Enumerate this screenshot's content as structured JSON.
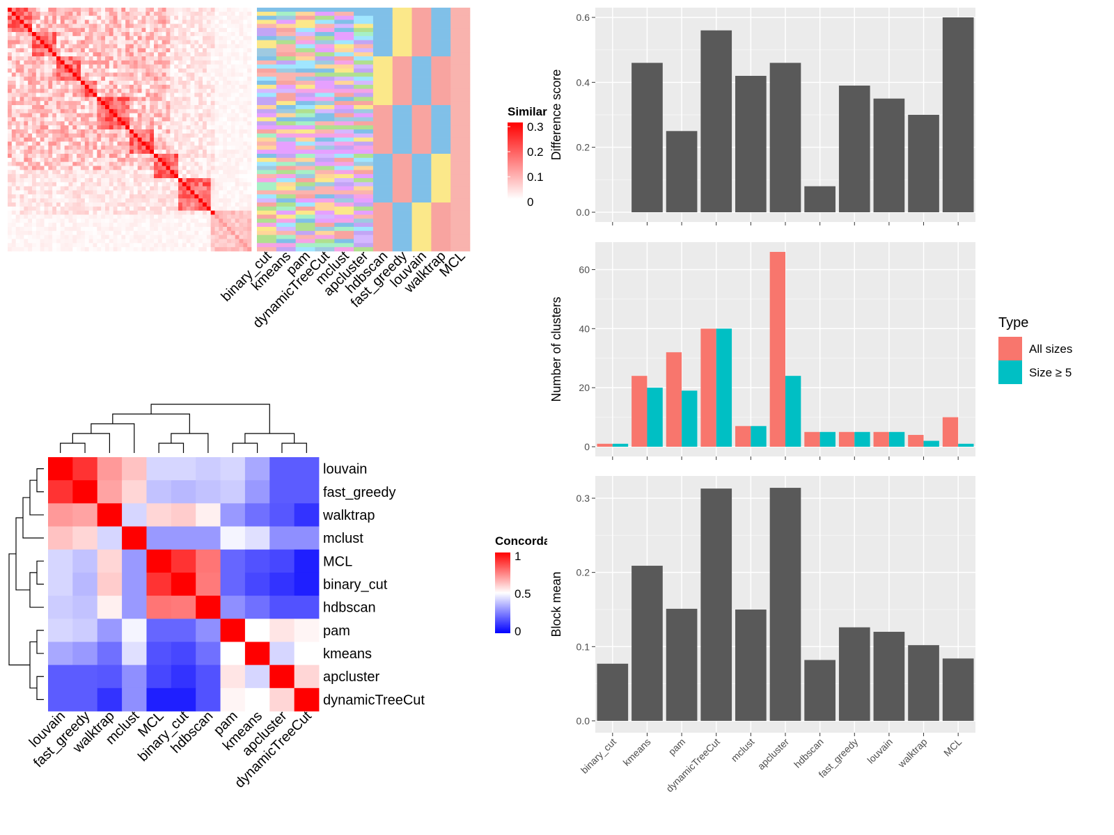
{
  "similarity_panel": {
    "legend_title": "Similarity",
    "legend_ticks": [
      "0.3",
      "0.2",
      "0.1",
      "0"
    ],
    "method_labels": [
      "binary_cut",
      "kmeans",
      "pam",
      "dynamicTreeCut",
      "mclust",
      "apcluster",
      "hdbscan",
      "fast_greedy",
      "louvain",
      "walktrap",
      "MCL"
    ],
    "colors": {
      "high": "#ff0000",
      "low": "#ffffff"
    }
  },
  "concordance_panel": {
    "legend_title": "Concordance",
    "legend_ticks": [
      "1",
      "0.5",
      "0"
    ],
    "colors": {
      "high": "#ff0000",
      "mid": "#ffffff",
      "low": "#0000ff"
    }
  },
  "chart_data": [
    {
      "type": "heatmap",
      "title": "",
      "legend_title": "Concordance",
      "rows": [
        "louvain",
        "fast_greedy",
        "walktrap",
        "mclust",
        "MCL",
        "binary_cut",
        "hdbscan",
        "pam",
        "kmeans",
        "apcluster",
        "dynamicTreeCut"
      ],
      "columns": [
        "louvain",
        "fast_greedy",
        "walktrap",
        "mclust",
        "MCL",
        "binary_cut",
        "hdbscan",
        "pam",
        "kmeans",
        "apcluster",
        "dynamicTreeCut"
      ],
      "values": [
        [
          1.0,
          0.9,
          0.7,
          0.62,
          0.42,
          0.42,
          0.4,
          0.42,
          0.33,
          0.18,
          0.18
        ],
        [
          0.9,
          1.0,
          0.68,
          0.58,
          0.38,
          0.36,
          0.38,
          0.4,
          0.3,
          0.18,
          0.18
        ],
        [
          0.7,
          0.68,
          1.0,
          0.42,
          0.58,
          0.6,
          0.53,
          0.3,
          0.22,
          0.17,
          0.1
        ],
        [
          0.62,
          0.58,
          0.42,
          1.0,
          0.3,
          0.3,
          0.3,
          0.48,
          0.44,
          0.28,
          0.28
        ],
        [
          0.42,
          0.38,
          0.58,
          0.3,
          1.0,
          0.9,
          0.77,
          0.2,
          0.16,
          0.14,
          0.06
        ],
        [
          0.42,
          0.36,
          0.6,
          0.3,
          0.9,
          1.0,
          0.76,
          0.2,
          0.14,
          0.1,
          0.06
        ],
        [
          0.4,
          0.38,
          0.53,
          0.3,
          0.77,
          0.76,
          1.0,
          0.28,
          0.22,
          0.16,
          0.16
        ],
        [
          0.42,
          0.4,
          0.3,
          0.48,
          0.2,
          0.2,
          0.28,
          1.0,
          0.5,
          0.55,
          0.52
        ],
        [
          0.33,
          0.3,
          0.22,
          0.44,
          0.16,
          0.14,
          0.22,
          0.5,
          1.0,
          0.42,
          0.5
        ],
        [
          0.18,
          0.18,
          0.17,
          0.28,
          0.14,
          0.1,
          0.16,
          0.55,
          0.42,
          1.0,
          0.58
        ],
        [
          0.18,
          0.18,
          0.1,
          0.28,
          0.06,
          0.06,
          0.16,
          0.52,
          0.5,
          0.58,
          1.0
        ]
      ],
      "scale": [
        0,
        1
      ]
    },
    {
      "type": "bar",
      "categories": [
        "binary_cut",
        "kmeans",
        "pam",
        "dynamicTreeCut",
        "mclust",
        "apcluster",
        "hdbscan",
        "fast_greedy",
        "louvain",
        "walktrap",
        "MCL"
      ],
      "values": [
        0.0,
        0.46,
        0.25,
        0.56,
        0.42,
        0.46,
        0.08,
        0.39,
        0.35,
        0.3,
        0.6
      ],
      "xlabel": "",
      "ylabel": "Difference score",
      "ylim": [
        -0.03,
        0.63
      ],
      "yticks": [
        0.0,
        0.2,
        0.4,
        0.6
      ],
      "ytick_labels": [
        "0.0",
        "0.2",
        "0.4",
        "0.6"
      ],
      "grid": true
    },
    {
      "type": "bar",
      "categories": [
        "binary_cut",
        "kmeans",
        "pam",
        "dynamicTreeCut",
        "mclust",
        "apcluster",
        "hdbscan",
        "fast_greedy",
        "louvain",
        "walktrap",
        "MCL"
      ],
      "series": [
        {
          "name": "All sizes",
          "values": [
            1,
            24,
            32,
            40,
            7,
            66,
            5,
            5,
            5,
            4,
            10
          ]
        },
        {
          "name": "Size ≥ 5",
          "values": [
            1,
            20,
            19,
            40,
            7,
            24,
            5,
            5,
            5,
            2,
            1
          ]
        }
      ],
      "xlabel": "",
      "ylabel": "Number of clusters",
      "ylim": [
        -3.3,
        69.3
      ],
      "yticks": [
        0,
        20,
        40,
        60
      ],
      "ytick_labels": [
        "0",
        "20",
        "40",
        "60"
      ],
      "legend_title": "Type",
      "legend_position": "right",
      "colors": [
        "#f8766d",
        "#00bfc4"
      ],
      "grid": true
    },
    {
      "type": "bar",
      "categories": [
        "binary_cut",
        "kmeans",
        "pam",
        "dynamicTreeCut",
        "mclust",
        "apcluster",
        "hdbscan",
        "fast_greedy",
        "louvain",
        "walktrap",
        "MCL"
      ],
      "values": [
        0.077,
        0.209,
        0.151,
        0.313,
        0.15,
        0.314,
        0.082,
        0.126,
        0.12,
        0.102,
        0.084
      ],
      "xlabel": "",
      "ylabel": "Block mean",
      "ylim": [
        -0.016,
        0.33
      ],
      "yticks": [
        0.0,
        0.1,
        0.2,
        0.3
      ],
      "ytick_labels": [
        "0.0",
        "0.1",
        "0.2",
        "0.3"
      ],
      "grid": true
    }
  ]
}
